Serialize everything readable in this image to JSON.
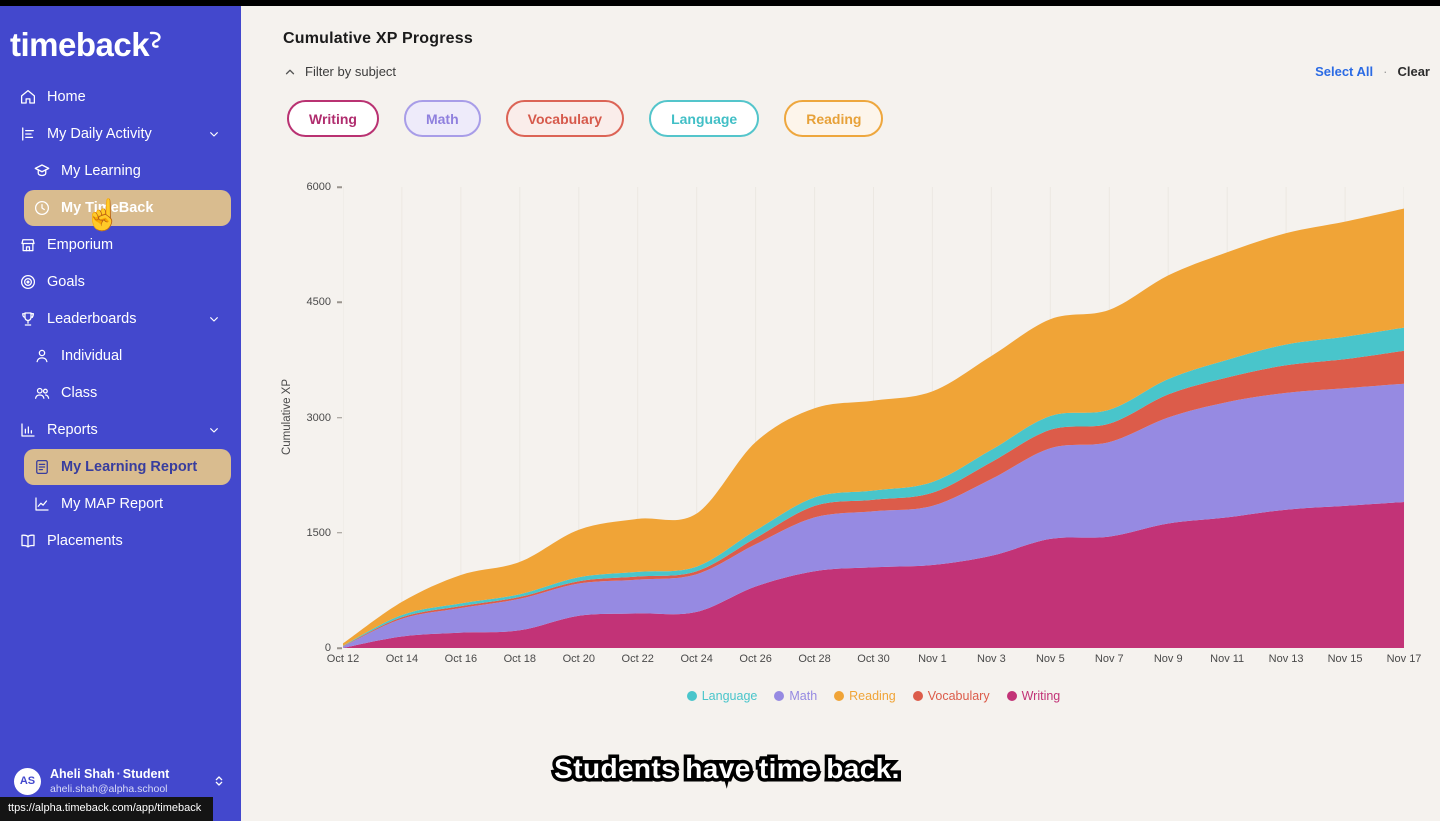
{
  "app": {
    "logo_text": "timeback"
  },
  "sidebar": {
    "bg_color": "#4348CD",
    "active_pill_color": "#D9BC8F",
    "items": [
      {
        "label": "Home",
        "icon": "home-icon",
        "level": 0
      },
      {
        "label": "My Daily Activity",
        "icon": "activity-icon",
        "level": 0,
        "chevron": "down"
      },
      {
        "label": "My Learning",
        "icon": "learning-icon",
        "level": 1
      },
      {
        "label": "My TimeBack",
        "icon": "clock-icon",
        "level": 1,
        "active": true,
        "active_style": "tan-white"
      },
      {
        "label": "Emporium",
        "icon": "storefront-icon",
        "level": 0
      },
      {
        "label": "Goals",
        "icon": "target-icon",
        "level": 0
      },
      {
        "label": "Leaderboards",
        "icon": "trophy-icon",
        "level": 0,
        "chevron": "down"
      },
      {
        "label": "Individual",
        "icon": "person-icon",
        "level": 1
      },
      {
        "label": "Class",
        "icon": "people-icon",
        "level": 1
      },
      {
        "label": "Reports",
        "icon": "report-icon",
        "level": 0,
        "chevron": "down"
      },
      {
        "label": "My Learning Report",
        "icon": "doc-icon",
        "level": 1,
        "active": true,
        "active_style": "tan-indigo"
      },
      {
        "label": "My MAP Report",
        "icon": "chart-line-icon",
        "level": 1
      },
      {
        "label": "Placements",
        "icon": "book-icon",
        "level": 0
      }
    ],
    "user": {
      "initials": "AS",
      "name": "Aheli Shah",
      "role_sep": "·",
      "role": "Student",
      "email": "aheli.shah@alpha.school"
    }
  },
  "statusbar": {
    "url": "ttps://alpha.timeback.com/app/timeback"
  },
  "header": {
    "title": "Cumulative XP Progress",
    "filter_label": "Filter by subject",
    "select_all": "Select All",
    "separator": "·",
    "clear": "Clear"
  },
  "filters": {
    "chips": [
      {
        "label": "Writing",
        "border": "#B93272",
        "text": "#B02D6E",
        "bg": "#FFFFFF"
      },
      {
        "label": "Math",
        "border": "#A89DE8",
        "text": "#8F80DE",
        "bg": "#EEEBFA"
      },
      {
        "label": "Vocabulary",
        "border": "#DC6456",
        "text": "#D6594B",
        "bg": "#FAEDEA"
      },
      {
        "label": "Language",
        "border": "#54C5CB",
        "text": "#41BFC6",
        "bg": "#FFFFFF"
      },
      {
        "label": "Reading",
        "border": "#EEA73E",
        "text": "#E7A139",
        "bg": "#FDF5EB"
      }
    ]
  },
  "caption": {
    "text": "Students have time back."
  },
  "chart_data": {
    "type": "area",
    "stacked": true,
    "title": "Cumulative XP Progress",
    "xlabel": "",
    "ylabel": "Cumulative XP",
    "ylim": [
      0,
      6000
    ],
    "yticks": [
      0,
      1500,
      3000,
      4500,
      6000
    ],
    "grid": "vertical",
    "legend_position": "bottom",
    "x": [
      "Oct 12",
      "Oct 14",
      "Oct 16",
      "Oct 18",
      "Oct 20",
      "Oct 22",
      "Oct 24",
      "Oct 26",
      "Oct 28",
      "Oct 30",
      "Nov 1",
      "Nov 3",
      "Nov 5",
      "Nov 7",
      "Nov 9",
      "Nov 11",
      "Nov 13",
      "Nov 15",
      "Nov 17"
    ],
    "stack_order": [
      "Writing",
      "Math",
      "Vocabulary",
      "Language",
      "Reading"
    ],
    "series": [
      {
        "name": "Language",
        "color": "#49C5CB",
        "values": [
          5,
          30,
          35,
          35,
          50,
          60,
          60,
          100,
          110,
          120,
          140,
          160,
          180,
          180,
          200,
          230,
          270,
          290,
          300
        ]
      },
      {
        "name": "Math",
        "color": "#968AE2",
        "values": [
          20,
          230,
          320,
          410,
          420,
          440,
          490,
          550,
          700,
          730,
          770,
          1000,
          1180,
          1230,
          1380,
          1500,
          1520,
          1530,
          1540
        ]
      },
      {
        "name": "Reading",
        "color": "#F0A437",
        "values": [
          30,
          170,
          370,
          420,
          620,
          690,
          690,
          1150,
          1160,
          1170,
          1180,
          1220,
          1260,
          1300,
          1350,
          1400,
          1450,
          1500,
          1550
        ]
      },
      {
        "name": "Vocabulary",
        "color": "#DC5C4A",
        "values": [
          5,
          20,
          25,
          25,
          30,
          40,
          40,
          80,
          150,
          150,
          170,
          220,
          240,
          240,
          300,
          320,
          360,
          380,
          430
        ]
      },
      {
        "name": "Writing",
        "color": "#C23377",
        "values": [
          0,
          150,
          200,
          230,
          420,
          450,
          470,
          800,
          1000,
          1050,
          1080,
          1200,
          1420,
          1450,
          1620,
          1700,
          1800,
          1850,
          1900
        ]
      }
    ]
  }
}
